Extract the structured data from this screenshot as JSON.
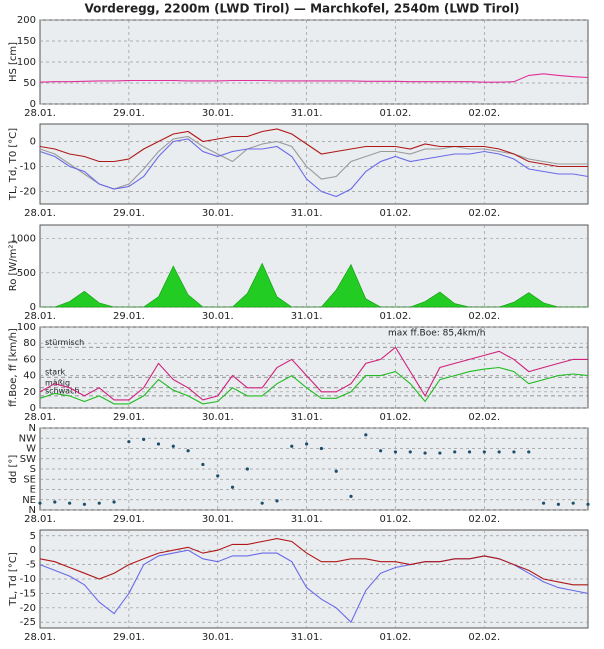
{
  "title": "Vorderegg, 2200m (LWD Tirol) — Marchkofel, 2540m (LWD Tirol)",
  "chart_data": [
    {
      "type": "line",
      "ylabel": "HS [cm]",
      "ylabel_color": "#e0309a",
      "ylim": [
        0,
        200
      ],
      "yticks": [
        0,
        50,
        100,
        150,
        200
      ],
      "grid": true,
      "categories": [
        "28.01.",
        null,
        null,
        null,
        null,
        null,
        "29.01.",
        null,
        null,
        null,
        null,
        null,
        "30.01.",
        null,
        null,
        null,
        null,
        null,
        "31.01.",
        null,
        null,
        null,
        null,
        null,
        "01.02.",
        null,
        null,
        null,
        null,
        null,
        "02.02.",
        null,
        null,
        null,
        null,
        null,
        null,
        null
      ],
      "series": [
        {
          "color": "#e0309a",
          "values": [
            52,
            53,
            53,
            54,
            55,
            55,
            56,
            56,
            56,
            56,
            55,
            55,
            55,
            56,
            56,
            56,
            55,
            55,
            55,
            55,
            55,
            55,
            54,
            54,
            54,
            53,
            53,
            53,
            53,
            53,
            52,
            52,
            53,
            68,
            72,
            68,
            65,
            63
          ]
        }
      ]
    },
    {
      "type": "line",
      "ylabel": "TL, Td, T0 [°C]",
      "ylabel_color": "#a01010",
      "ylim": [
        -25,
        7
      ],
      "yticks": [
        -20,
        -10,
        0
      ],
      "grid": true,
      "categories": [
        "28.01.",
        null,
        null,
        null,
        null,
        null,
        "29.01.",
        null,
        null,
        null,
        null,
        null,
        "30.01.",
        null,
        null,
        null,
        null,
        null,
        "31.01.",
        null,
        null,
        null,
        null,
        null,
        "01.02.",
        null,
        null,
        null,
        null,
        null,
        "02.02.",
        null,
        null,
        null,
        null,
        null,
        null,
        null
      ],
      "series": [
        {
          "color": "#999999",
          "values": [
            -3,
            -5,
            -9,
            -13,
            -17,
            -19,
            -17,
            -11,
            -4,
            1,
            2,
            -2,
            -5,
            -8,
            -3,
            -1,
            0,
            -2,
            -10,
            -15,
            -14,
            -8,
            -6,
            -4,
            -4,
            -5,
            -3,
            -3,
            -2,
            -3,
            -3,
            -4,
            -5,
            -7,
            -8,
            -9,
            -9,
            -9
          ]
        },
        {
          "color": "#6a6ae8",
          "values": [
            -4,
            -6,
            -10,
            -12,
            -17,
            -19,
            -18,
            -14,
            -6,
            0,
            1,
            -4,
            -6,
            -4,
            -3,
            -3,
            -2,
            -6,
            -15,
            -20,
            -22,
            -19,
            -12,
            -8,
            -6,
            -8,
            -7,
            -6,
            -5,
            -5,
            -4,
            -5,
            -7,
            -11,
            -12,
            -13,
            -13,
            -14
          ]
        },
        {
          "color": "#b01818",
          "values": [
            -2,
            -3,
            -5,
            -6,
            -8,
            -8,
            -7,
            -3,
            0,
            3,
            4,
            0,
            1,
            2,
            2,
            4,
            5,
            3,
            -1,
            -5,
            -4,
            -3,
            -2,
            -2,
            -2,
            -3,
            -1,
            -2,
            -2,
            -2,
            -2,
            -3,
            -5,
            -8,
            -9,
            -10,
            -10,
            -10
          ]
        }
      ]
    },
    {
      "type": "area",
      "ylabel": "Ro [W/m²]",
      "ylabel_color": "#109010",
      "ylim": [
        0,
        1200
      ],
      "yticks": [
        0,
        500,
        1000
      ],
      "grid": true,
      "categories": [
        "28.01.",
        null,
        null,
        null,
        null,
        null,
        "29.01.",
        null,
        null,
        null,
        null,
        null,
        "30.01.",
        null,
        null,
        null,
        null,
        null,
        "31.01.",
        null,
        null,
        null,
        null,
        null,
        "01.02.",
        null,
        null,
        null,
        null,
        null,
        "02.02.",
        null,
        null,
        null,
        null,
        null,
        null,
        null
      ],
      "series": [
        {
          "color": "#22cc22",
          "values": [
            0,
            0,
            80,
            230,
            60,
            0,
            0,
            0,
            150,
            600,
            180,
            0,
            0,
            0,
            200,
            640,
            150,
            0,
            0,
            0,
            250,
            620,
            120,
            0,
            0,
            0,
            80,
            220,
            50,
            0,
            0,
            0,
            70,
            210,
            60,
            0,
            0,
            0
          ]
        }
      ]
    },
    {
      "type": "line",
      "ylabel": "ff.Boe, ff [km/h]",
      "ylabel_color": "#e0309a",
      "ylim": [
        0,
        100
      ],
      "yticks": [
        0,
        20,
        40,
        60,
        80,
        100
      ],
      "grid": true,
      "categories": [
        "28.01.",
        null,
        null,
        null,
        null,
        null,
        "29.01.",
        null,
        null,
        null,
        null,
        null,
        "30.01.",
        null,
        null,
        null,
        null,
        null,
        "31.01.",
        null,
        null,
        null,
        null,
        null,
        "01.02.",
        null,
        null,
        null,
        null,
        null,
        "02.02.",
        null,
        null,
        null,
        null,
        null,
        null,
        null
      ],
      "levels": [
        {
          "label": "stürmisch",
          "value": 75
        },
        {
          "label": "stark",
          "value": 38
        },
        {
          "label": "mäßig",
          "value": 25
        },
        {
          "label": "schwach",
          "value": 15
        }
      ],
      "max_label": "max ff.Boe: 85,4km/h",
      "series": [
        {
          "color": "#d0207a",
          "values": [
            20,
            30,
            25,
            15,
            25,
            10,
            10,
            25,
            55,
            35,
            25,
            10,
            15,
            40,
            25,
            25,
            50,
            60,
            40,
            20,
            20,
            30,
            55,
            60,
            75,
            45,
            15,
            50,
            55,
            60,
            65,
            70,
            60,
            45,
            50,
            55,
            60,
            60
          ]
        },
        {
          "color": "#22bb22",
          "values": [
            12,
            18,
            15,
            8,
            15,
            5,
            5,
            15,
            35,
            22,
            15,
            5,
            8,
            25,
            15,
            15,
            30,
            40,
            25,
            12,
            12,
            20,
            40,
            40,
            45,
            30,
            8,
            35,
            40,
            45,
            48,
            50,
            45,
            30,
            35,
            40,
            42,
            40
          ]
        }
      ]
    },
    {
      "type": "scatter",
      "ylabel": "dd [°]",
      "ylabel_color": "#1d4e6b",
      "ylim": [
        0,
        360
      ],
      "grid": true,
      "yticks": [
        {
          "value": 0,
          "label": "N"
        },
        {
          "value": 45,
          "label": "NE"
        },
        {
          "value": 90,
          "label": "E"
        },
        {
          "value": 135,
          "label": "SE"
        },
        {
          "value": 180,
          "label": "S"
        },
        {
          "value": 225,
          "label": "SW"
        },
        {
          "value": 270,
          "label": "W"
        },
        {
          "value": 315,
          "label": "NW"
        },
        {
          "value": 360,
          "label": "N"
        }
      ],
      "categories": [
        "28.01.",
        null,
        null,
        null,
        null,
        null,
        "29.01.",
        null,
        null,
        null,
        null,
        null,
        "30.01.",
        null,
        null,
        null,
        null,
        null,
        "31.01.",
        null,
        null,
        null,
        null,
        null,
        "01.02.",
        null,
        null,
        null,
        null,
        null,
        "02.02.",
        null,
        null,
        null,
        null,
        null,
        null,
        null
      ],
      "series": [
        {
          "color": "#1d4e6b",
          "values": [
            30,
            35,
            30,
            25,
            30,
            35,
            300,
            310,
            290,
            280,
            260,
            200,
            150,
            100,
            180,
            30,
            40,
            280,
            290,
            270,
            170,
            60,
            330,
            260,
            255,
            255,
            250,
            250,
            255,
            255,
            255,
            255,
            255,
            255,
            30,
            25,
            30,
            25
          ]
        }
      ]
    },
    {
      "type": "line",
      "ylabel": "TL, Td [°C]",
      "ylabel_color": "#a01010",
      "ylim": [
        -27,
        7
      ],
      "yticks": [
        -25,
        -20,
        -15,
        -10,
        -5,
        0,
        5
      ],
      "grid": true,
      "categories": [
        "28.01.",
        null,
        null,
        null,
        null,
        null,
        "29.01.",
        null,
        null,
        null,
        null,
        null,
        "30.01.",
        null,
        null,
        null,
        null,
        null,
        "31.01.",
        null,
        null,
        null,
        null,
        null,
        "01.02.",
        null,
        null,
        null,
        null,
        null,
        "02.02.",
        null,
        null,
        null,
        null,
        null,
        null,
        null
      ],
      "series": [
        {
          "color": "#6a6ae8",
          "values": [
            -5,
            -7,
            -9,
            -12,
            -18,
            -22,
            -15,
            -5,
            -2,
            -1,
            0,
            -3,
            -4,
            -2,
            -2,
            -1,
            -1,
            -4,
            -13,
            -17,
            -20,
            -25,
            -14,
            -8,
            -6,
            -5,
            -4,
            -4,
            -3,
            -3,
            -2,
            -3,
            -5,
            -8,
            -11,
            -13,
            -14,
            -15
          ]
        },
        {
          "color": "#b01818",
          "values": [
            -3,
            -4,
            -6,
            -8,
            -10,
            -8,
            -5,
            -3,
            -1,
            0,
            1,
            -1,
            0,
            2,
            2,
            3,
            4,
            3,
            -1,
            -4,
            -4,
            -3,
            -3,
            -4,
            -4,
            -5,
            -4,
            -4,
            -3,
            -3,
            -2,
            -3,
            -5,
            -7,
            -10,
            -11,
            -12,
            -12
          ]
        }
      ]
    }
  ]
}
